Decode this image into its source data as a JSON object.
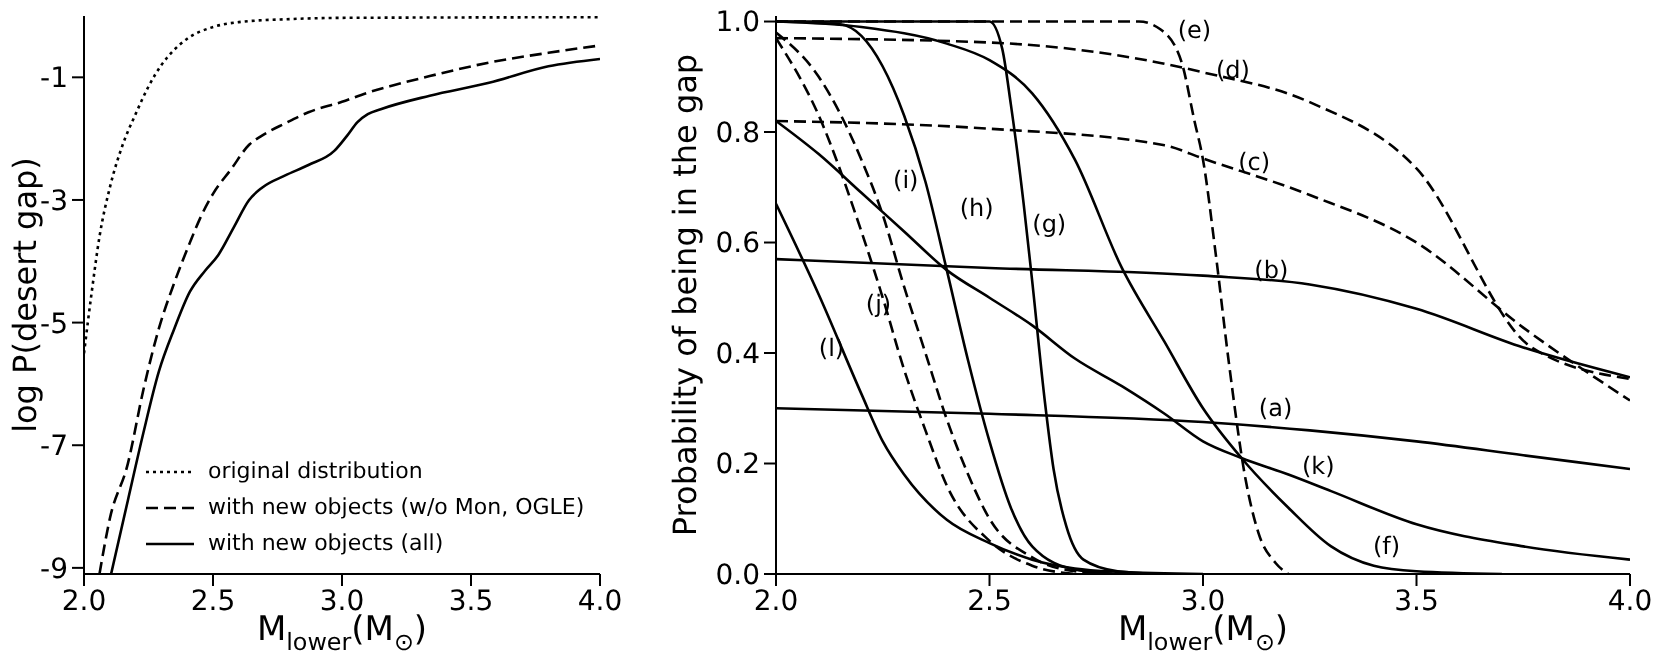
{
  "chart_data": [
    {
      "type": "line",
      "xlabel": "M$_{lower}$(M$_{⊙}$)",
      "ylabel": "log P(desert gap)",
      "xlim": [
        2.0,
        4.0
      ],
      "ylim": [
        -9.1,
        0
      ],
      "xticks": [
        {
          "value": 2,
          "label": "2.0"
        },
        {
          "value": 2.5,
          "label": "2.5"
        },
        {
          "value": 3,
          "label": "3.0"
        },
        {
          "value": 3.5,
          "label": "3.5"
        },
        {
          "value": 4,
          "label": "4.0"
        }
      ],
      "yticks": [
        -1,
        -3,
        -5,
        -7,
        -9
      ],
      "grid": false,
      "legend": "bottom right",
      "marker": "none",
      "series": [
        {
          "name": "original distribution",
          "color": "#000000",
          "line_style": "dotted",
          "x": [
            2.0,
            2.03,
            2.06,
            2.1,
            2.15,
            2.2,
            2.25,
            2.3,
            2.35,
            2.4,
            2.5,
            2.6,
            2.8,
            3.0,
            4.0
          ],
          "values": [
            -5.5,
            -4.5,
            -3.6,
            -2.8,
            -2.1,
            -1.6,
            -1.15,
            -0.8,
            -0.55,
            -0.37,
            -0.18,
            -0.1,
            -0.05,
            -0.03,
            -0.02
          ]
        },
        {
          "name": "with new objects (w/o Mon, OGLE)",
          "color": "#000000",
          "line_style": "dashed",
          "x": [
            2.06,
            2.1,
            2.17,
            2.23,
            2.29,
            2.35,
            2.41,
            2.45,
            2.5,
            2.57,
            2.64,
            2.69,
            2.78,
            2.87,
            3.0,
            3.1,
            3.2,
            3.34,
            3.57,
            3.8,
            4.0
          ],
          "values": [
            -9.1,
            -8.2,
            -7.3,
            -6.1,
            -5.1,
            -4.35,
            -3.7,
            -3.3,
            -2.9,
            -2.5,
            -2.1,
            -1.95,
            -1.75,
            -1.57,
            -1.4,
            -1.25,
            -1.13,
            -0.98,
            -0.76,
            -0.6,
            -0.48
          ]
        },
        {
          "name": "with new objects (all)",
          "color": "#000000",
          "line_style": "solid",
          "x": [
            2.105,
            2.17,
            2.23,
            2.29,
            2.35,
            2.41,
            2.47,
            2.52,
            2.58,
            2.64,
            2.69,
            2.78,
            2.87,
            2.97,
            3.02,
            3.06,
            3.1,
            3.15,
            3.34,
            3.57,
            3.8,
            4.0
          ],
          "values": [
            -9.1,
            -7.9,
            -6.8,
            -5.8,
            -5.1,
            -4.5,
            -4.15,
            -3.9,
            -3.45,
            -3.0,
            -2.8,
            -2.6,
            -2.43,
            -2.2,
            -1.95,
            -1.73,
            -1.6,
            -1.52,
            -1.3,
            -1.09,
            -0.82,
            -0.7
          ]
        }
      ]
    },
    {
      "type": "line",
      "xlabel": "M$_{lower}$(M$_{⊙}$)",
      "ylabel": "Probability of being in the gap",
      "xlim": [
        2.0,
        4.0
      ],
      "ylim": [
        0,
        1.01
      ],
      "xticks": [
        {
          "value": 2,
          "label": "2.0"
        },
        {
          "value": 2.5,
          "label": "2.5"
        },
        {
          "value": 3,
          "label": "3.0"
        },
        {
          "value": 3.5,
          "label": "3.5"
        },
        {
          "value": 4,
          "label": "4.0"
        }
      ],
      "yticks": [
        {
          "value": 0,
          "label": "0.0"
        },
        {
          "value": 0.2,
          "label": "0.2"
        },
        {
          "value": 0.4,
          "label": "0.4"
        },
        {
          "value": 0.6,
          "label": "0.6"
        },
        {
          "value": 0.8,
          "label": "0.8"
        },
        {
          "value": 1,
          "label": "1.0"
        }
      ],
      "grid": false,
      "legend": false,
      "marker": "none",
      "series": [
        {
          "color": "#000000",
          "line_style": "solid",
          "x": [
            2.0,
            2.5,
            3.0,
            3.25,
            3.5,
            3.75,
            4.0
          ],
          "values": [
            0.3,
            0.29,
            0.275,
            0.26,
            0.24,
            0.215,
            0.19
          ]
        },
        {
          "color": "#000000",
          "line_style": "solid",
          "x": [
            2.0,
            2.5,
            3.0,
            3.25,
            3.5,
            3.75,
            4.0
          ],
          "values": [
            0.57,
            0.554,
            0.54,
            0.524,
            0.48,
            0.41,
            0.356
          ]
        },
        {
          "color": "#000000",
          "line_style": "dashed",
          "x": [
            2.0,
            2.5,
            2.91,
            3.0,
            3.25,
            3.5,
            3.75,
            4.0
          ],
          "values": [
            0.82,
            0.806,
            0.776,
            0.752,
            0.686,
            0.6,
            0.446,
            0.314
          ]
        },
        {
          "color": "#000000",
          "line_style": "dashed",
          "x": [
            2.0,
            2.5,
            2.9,
            3.0,
            3.25,
            3.5,
            3.77,
            4.0
          ],
          "values": [
            0.97,
            0.962,
            0.925,
            0.908,
            0.854,
            0.734,
            0.41,
            0.353
          ]
        },
        {
          "color": "#000000",
          "line_style": "dashed",
          "x": [
            2.0,
            2.85,
            2.9,
            2.95,
            2.98,
            3.0,
            3.03,
            3.06,
            3.1,
            3.13,
            3.17,
            3.2
          ],
          "values": [
            1.0,
            1.0,
            0.986,
            0.926,
            0.82,
            0.75,
            0.578,
            0.386,
            0.17,
            0.074,
            0.02,
            0.0
          ]
        },
        {
          "color": "#000000",
          "line_style": "solid",
          "x": [
            2.0,
            2.2,
            2.4,
            2.5,
            2.6,
            2.7,
            2.81,
            2.91,
            3.0,
            3.09,
            3.2,
            3.3,
            3.4,
            3.5,
            3.7
          ],
          "values": [
            1.0,
            0.99,
            0.96,
            0.93,
            0.87,
            0.75,
            0.554,
            0.42,
            0.3,
            0.21,
            0.12,
            0.05,
            0.015,
            0.005,
            0.0
          ]
        },
        {
          "color": "#000000",
          "line_style": "solid",
          "x": [
            2.0,
            2.5,
            2.53,
            2.55,
            2.58,
            2.6,
            2.63,
            2.65,
            2.68,
            2.72,
            2.8,
            2.9
          ],
          "values": [
            1.0,
            1.0,
            0.95,
            0.85,
            0.67,
            0.53,
            0.31,
            0.19,
            0.086,
            0.026,
            0.005,
            0.0
          ]
        },
        {
          "color": "#000000",
          "line_style": "solid",
          "x": [
            2.0,
            2.15,
            2.2,
            2.3,
            2.35,
            2.4,
            2.45,
            2.5,
            2.55,
            2.6,
            2.7,
            2.8
          ],
          "values": [
            1.0,
            0.995,
            0.974,
            0.83,
            0.71,
            0.55,
            0.386,
            0.24,
            0.12,
            0.05,
            0.008,
            0.0
          ]
        },
        {
          "color": "#000000",
          "line_style": "dashed",
          "x": [
            2.0,
            2.1,
            2.2,
            2.25,
            2.3,
            2.35,
            2.4,
            2.45,
            2.5,
            2.6,
            2.7,
            2.8
          ],
          "values": [
            0.98,
            0.9,
            0.75,
            0.65,
            0.52,
            0.4,
            0.28,
            0.18,
            0.1,
            0.03,
            0.005,
            0.0
          ]
        },
        {
          "color": "#000000",
          "line_style": "dashed",
          "x": [
            2.0,
            2.1,
            2.2,
            2.25,
            2.3,
            2.35,
            2.4,
            2.5,
            2.6,
            2.7
          ],
          "values": [
            0.97,
            0.83,
            0.62,
            0.5,
            0.37,
            0.26,
            0.16,
            0.06,
            0.015,
            0.0
          ]
        },
        {
          "color": "#000000",
          "line_style": "solid",
          "x": [
            2.0,
            2.1,
            2.2,
            2.3,
            2.4,
            2.5,
            2.6,
            2.7,
            2.81,
            2.91,
            3.0,
            3.09,
            3.2,
            3.3,
            3.5,
            3.75,
            4.0
          ],
          "values": [
            0.82,
            0.76,
            0.69,
            0.62,
            0.55,
            0.5,
            0.45,
            0.39,
            0.34,
            0.29,
            0.24,
            0.21,
            0.18,
            0.15,
            0.09,
            0.05,
            0.026
          ]
        },
        {
          "color": "#000000",
          "line_style": "solid",
          "x": [
            2.0,
            2.1,
            2.2,
            2.25,
            2.3,
            2.4,
            2.5,
            2.6,
            2.7,
            2.8,
            3.0
          ],
          "values": [
            0.67,
            0.506,
            0.326,
            0.24,
            0.18,
            0.098,
            0.056,
            0.026,
            0.01,
            0.004,
            0.0
          ]
        }
      ],
      "annotations": [
        "(a)",
        "(b)",
        "(c)",
        "(d)",
        "(e)",
        "(f)",
        "(g)",
        "(h)",
        "(i)",
        "(j)",
        "(k)",
        "(l)"
      ]
    }
  ]
}
